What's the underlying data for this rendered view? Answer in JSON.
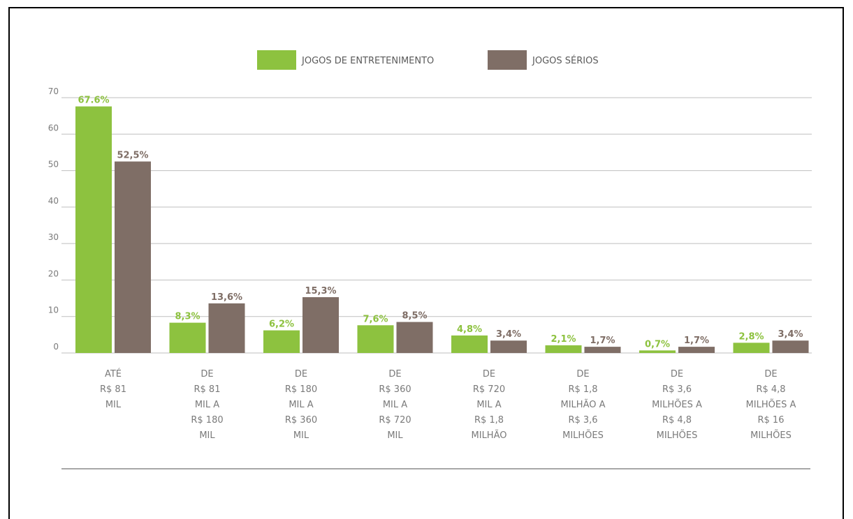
{
  "colors": {
    "entretenimento": "#8dc23f",
    "serios": "#7f6e66",
    "grid": "#bfbfbf",
    "axis_text": "#7a7a7a"
  },
  "chart_data": {
    "type": "bar",
    "ylim": [
      0,
      70
    ],
    "yticks": [
      "0",
      "10",
      "20",
      "30",
      "40",
      "50",
      "60",
      "70"
    ],
    "grid": true,
    "legend_position": "top-center",
    "categories": [
      [
        "ATÉ",
        "R$ 81",
        "MIL"
      ],
      [
        "DE",
        "R$ 81",
        "MIL A",
        "R$ 180",
        "MIL"
      ],
      [
        "DE",
        "R$ 180",
        "MIL A",
        "R$ 360",
        "MIL"
      ],
      [
        "DE",
        "R$ 360",
        "MIL A",
        "R$ 720",
        "MIL"
      ],
      [
        "DE",
        "R$ 720",
        "MIL A",
        "R$ 1,8",
        "MILHÃO"
      ],
      [
        "DE",
        "R$ 1,8",
        "MILHÃO A",
        "R$ 3,6",
        "MILHÕES"
      ],
      [
        "DE",
        "R$ 3,6",
        "MILHÕES A",
        "R$ 4,8",
        "MILHÕES"
      ],
      [
        "DE",
        "R$ 4,8",
        "MILHÕES A",
        "R$ 16",
        "MILHÕES"
      ]
    ],
    "series": [
      {
        "name": "JOGOS DE ENTRETENIMENTO",
        "color": "#8dc23f",
        "values": [
          67.6,
          8.3,
          6.2,
          7.6,
          4.8,
          2.1,
          0.7,
          2.8
        ],
        "labels": [
          "67.6%",
          "8,3%",
          "6,2%",
          "7,6%",
          "4,8%",
          "2,1%",
          "0,7%",
          "2,8%"
        ]
      },
      {
        "name": "JOGOS SÉRIOS",
        "color": "#7f6e66",
        "values": [
          52.5,
          13.6,
          15.3,
          8.5,
          3.4,
          1.7,
          1.7,
          3.4
        ],
        "labels": [
          "52,5%",
          "13,6%",
          "15,3%",
          "8,5%",
          "3,4%",
          "1,7%",
          "1,7%",
          "3,4%"
        ]
      }
    ]
  }
}
